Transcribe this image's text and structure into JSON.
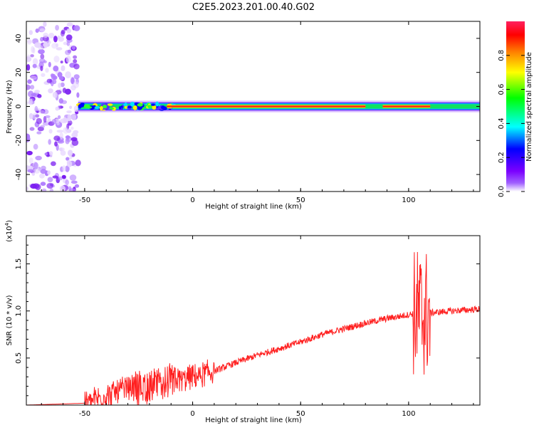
{
  "page": {
    "title": "C2E5.2023.201.00.40.G02"
  },
  "chart_data": [
    {
      "type": "heatmap",
      "xlabel": "Height of straight line (km)",
      "ylabel": "Frequency (Hz)",
      "xlim": [
        -77,
        133
      ],
      "ylim": [
        -50,
        50
      ],
      "xticks": [
        -50,
        0,
        50,
        100
      ],
      "yticks": [
        -40,
        -20,
        0,
        20,
        40
      ],
      "colorbar": {
        "label": "Normalized spectral amplitude",
        "range": [
          0,
          1
        ],
        "ticks": [
          "0.0",
          "0.2",
          "0.4",
          "0.6",
          "0.8"
        ],
        "colors": [
          "#ffffff",
          "#7b00ff",
          "#0000ff",
          "#00ffff",
          "#00ff00",
          "#ffff00",
          "#ff7f00",
          "#ff0000"
        ]
      },
      "features": {
        "noise_region_x": [
          -77,
          -53
        ],
        "signal_band_x": [
          -53,
          133
        ],
        "signal_center_hz": 0,
        "peak_ridge_x": [
          -12,
          80
        ],
        "peak_ridge_2_x": [
          88,
          110
        ]
      }
    },
    {
      "type": "line",
      "xlabel": "Height of straight line (km)",
      "ylabel": "SNR (10 * v/v)",
      "yscale_label": "(x10",
      "yscale_exp": "4",
      "xlim": [
        -77,
        133
      ],
      "ylim": [
        0,
        18000
      ],
      "xticks": [
        -50,
        0,
        50,
        100
      ],
      "yticks": [
        0.5,
        1.0,
        1.5
      ],
      "yticklabels": [
        "0.5",
        "1.0",
        "1.5"
      ],
      "color": "#ff2020",
      "series": [
        {
          "x": [
            -77,
            -50,
            -40,
            -30,
            -20,
            -10,
            0,
            10,
            20,
            30,
            40,
            50,
            60,
            70,
            80,
            90,
            95,
            100,
            103,
            106,
            108,
            110,
            120,
            133
          ],
          "y": [
            0,
            200,
            1000,
            1800,
            2000,
            2500,
            3000,
            3600,
            4500,
            5300,
            6000,
            6700,
            7500,
            8100,
            8700,
            9200,
            9400,
            9600,
            9800,
            9700,
            9800,
            9800,
            10000,
            10200
          ]
        }
      ]
    }
  ]
}
